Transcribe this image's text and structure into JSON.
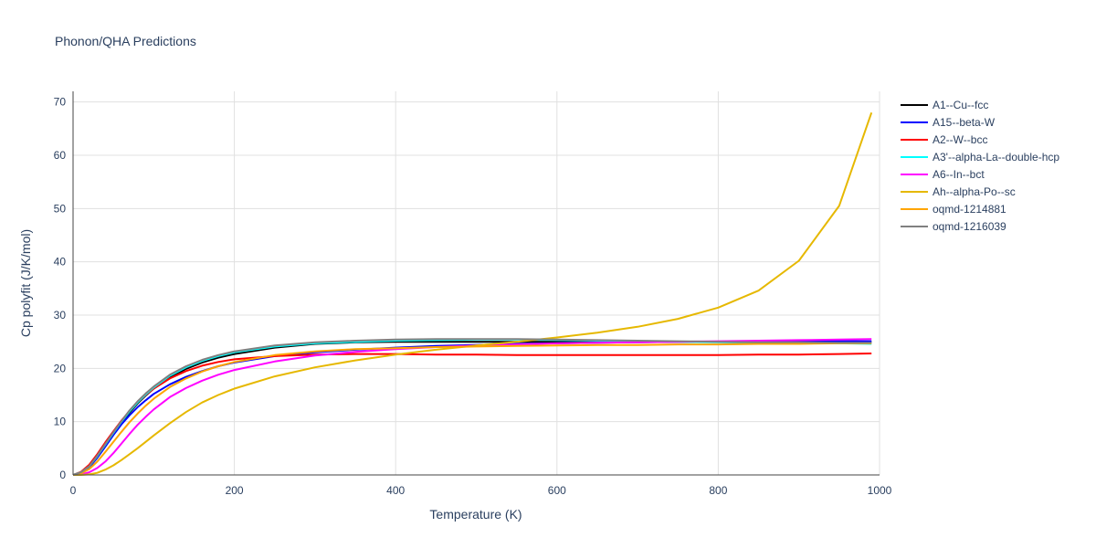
{
  "chart_data": {
    "type": "line",
    "title": "Phonon/QHA Predictions",
    "xlabel": "Temperature (K)",
    "ylabel": "Cp polyfit (J/K/mol)",
    "xlim": [
      0,
      1000
    ],
    "ylim": [
      0,
      72
    ],
    "xticks": [
      0,
      200,
      400,
      600,
      800,
      1000
    ],
    "yticks": [
      0,
      10,
      20,
      30,
      40,
      50,
      60,
      70
    ],
    "grid": true,
    "legend_position": "top-right",
    "x": [
      0,
      10,
      20,
      30,
      40,
      50,
      60,
      70,
      80,
      90,
      100,
      120,
      140,
      160,
      180,
      200,
      250,
      300,
      350,
      400,
      450,
      500,
      550,
      600,
      650,
      700,
      750,
      800,
      850,
      900,
      950,
      990
    ],
    "series": [
      {
        "name": "A1--Cu--fcc",
        "color": "#000000",
        "values": [
          0,
          0.5,
          1.6,
          3.5,
          5.6,
          7.8,
          9.8,
          11.7,
          13.4,
          14.9,
          16.2,
          18.3,
          19.9,
          21.1,
          22.0,
          22.7,
          23.9,
          24.6,
          24.9,
          25.0,
          25.0,
          25.0,
          25.0,
          25.0,
          25.0,
          25.0,
          25.0,
          25.0,
          25.0,
          25.0,
          25.0,
          25.0
        ]
      },
      {
        "name": "A15--beta-W",
        "color": "#0000ff",
        "values": [
          0,
          0.4,
          1.4,
          3.2,
          5.3,
          7.5,
          9.5,
          11.2,
          12.7,
          14.0,
          15.2,
          17.0,
          18.4,
          19.5,
          20.4,
          21.1,
          22.3,
          23.0,
          23.5,
          23.9,
          24.2,
          24.4,
          24.6,
          24.7,
          24.8,
          24.9,
          25.0,
          25.0,
          25.1,
          25.1,
          25.1,
          25.1
        ]
      },
      {
        "name": "A2--W--bcc",
        "color": "#ff0000",
        "values": [
          0,
          0.6,
          1.9,
          3.9,
          6.1,
          8.2,
          10.2,
          12.0,
          13.6,
          15.0,
          16.2,
          18.1,
          19.5,
          20.5,
          21.2,
          21.7,
          22.3,
          22.6,
          22.7,
          22.7,
          22.6,
          22.6,
          22.5,
          22.5,
          22.5,
          22.5,
          22.5,
          22.5,
          22.6,
          22.6,
          22.7,
          22.8
        ]
      },
      {
        "name": "A3'--alpha-La--double-hcp",
        "color": "#00ffff",
        "values": [
          0,
          0.5,
          1.6,
          3.5,
          5.7,
          7.9,
          10.0,
          11.9,
          13.6,
          15.1,
          16.4,
          18.6,
          20.2,
          21.4,
          22.3,
          23.0,
          24.1,
          24.7,
          25.0,
          25.2,
          25.3,
          25.4,
          25.4,
          25.3,
          25.2,
          25.1,
          25.0,
          24.9,
          24.8,
          24.7,
          24.7,
          24.6
        ]
      },
      {
        "name": "A6--In--bct",
        "color": "#ff00ff",
        "values": [
          0,
          0.1,
          0.5,
          1.3,
          2.5,
          4.1,
          5.9,
          7.7,
          9.4,
          10.9,
          12.3,
          14.6,
          16.3,
          17.7,
          18.8,
          19.7,
          21.3,
          22.4,
          23.1,
          23.6,
          24.0,
          24.3,
          24.5,
          24.7,
          24.8,
          24.9,
          25.0,
          25.1,
          25.2,
          25.3,
          25.4,
          25.5
        ]
      },
      {
        "name": "Ah--alpha-Po--sc",
        "color": "#e6b800",
        "values": [
          0,
          0.0,
          0.1,
          0.4,
          1.0,
          1.8,
          2.8,
          3.9,
          5.0,
          6.2,
          7.4,
          9.7,
          11.8,
          13.6,
          15.0,
          16.2,
          18.5,
          20.2,
          21.5,
          22.6,
          23.5,
          24.3,
          25.0,
          25.8,
          26.7,
          27.8,
          29.3,
          31.4,
          34.6,
          40.2,
          50.5,
          68.0
        ]
      },
      {
        "name": "oqmd-1214881",
        "color": "#ffa500",
        "values": [
          0,
          0.3,
          1.1,
          2.5,
          4.3,
          6.2,
          8.1,
          9.9,
          11.5,
          13.0,
          14.3,
          16.5,
          18.1,
          19.4,
          20.4,
          21.2,
          22.5,
          23.2,
          23.6,
          23.8,
          24.0,
          24.1,
          24.2,
          24.3,
          24.4,
          24.4,
          24.5,
          24.5,
          24.6,
          24.6,
          24.7,
          24.7
        ]
      },
      {
        "name": "oqmd-1216039",
        "color": "#808080",
        "values": [
          0,
          0.5,
          1.6,
          3.6,
          5.8,
          8.0,
          10.1,
          12.1,
          13.8,
          15.3,
          16.6,
          18.8,
          20.4,
          21.6,
          22.5,
          23.2,
          24.3,
          24.9,
          25.2,
          25.4,
          25.5,
          25.5,
          25.5,
          25.4,
          25.3,
          25.2,
          25.1,
          25.0,
          24.9,
          24.9,
          24.8,
          24.8
        ]
      }
    ]
  }
}
